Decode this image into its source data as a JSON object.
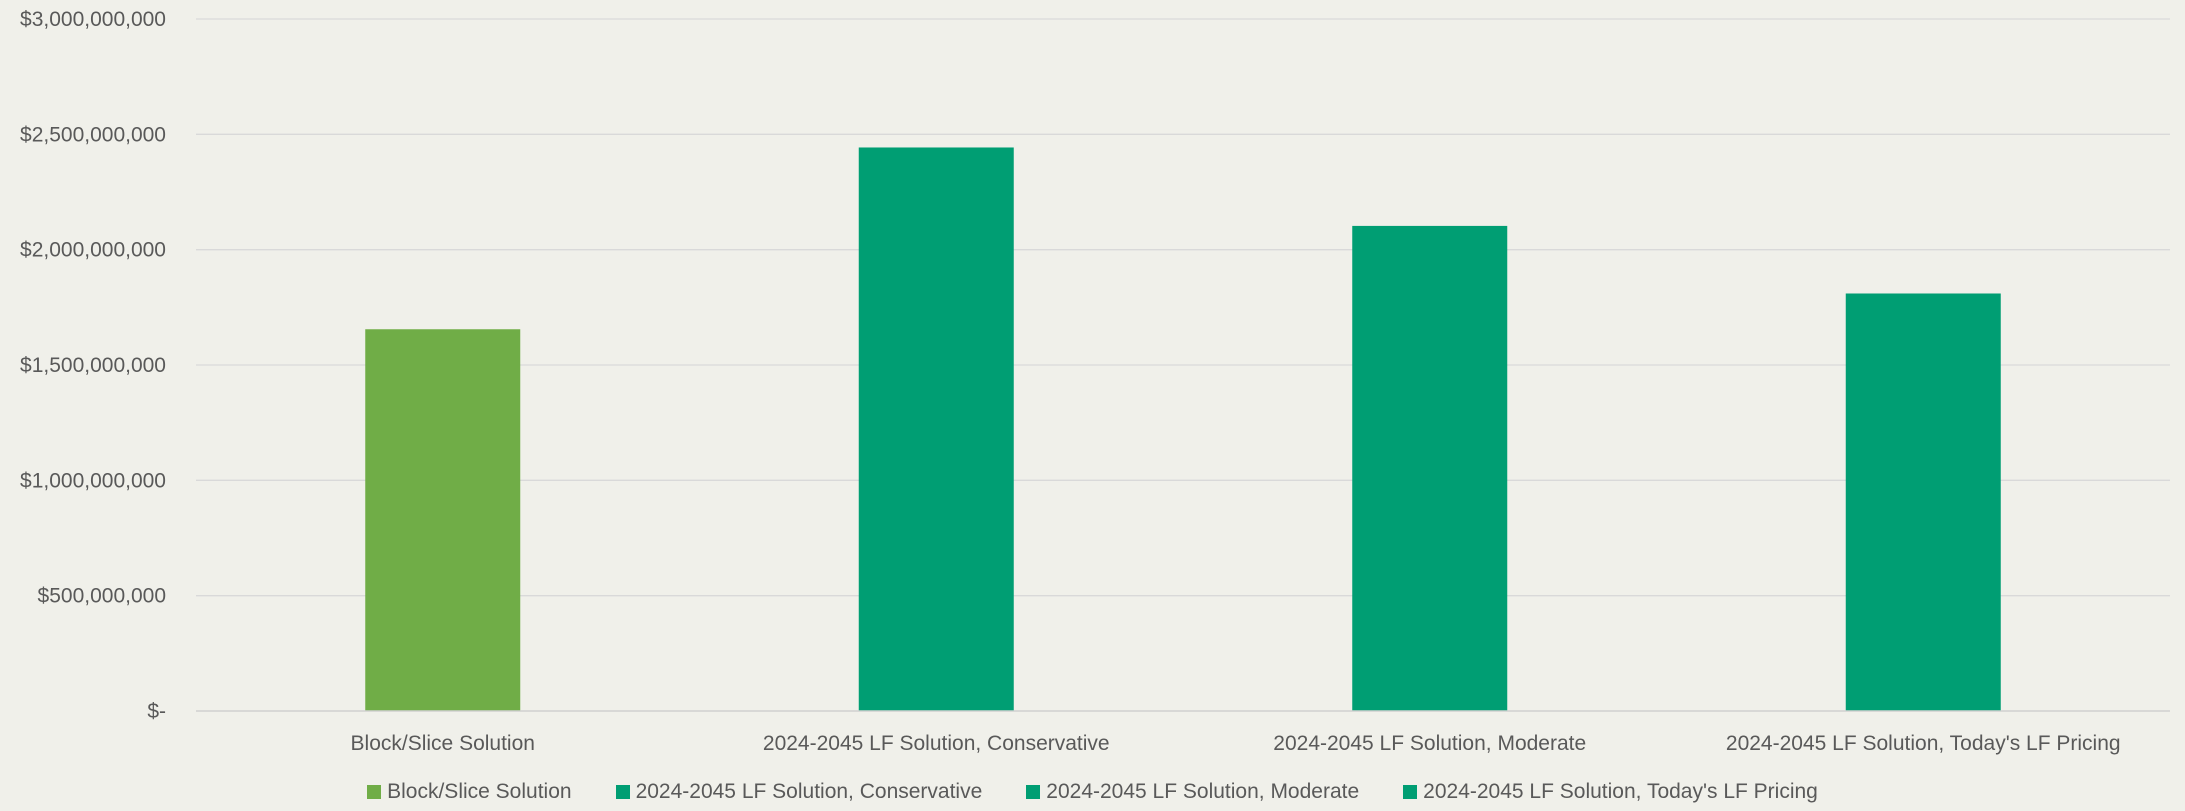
{
  "chart_data": {
    "type": "bar",
    "categories": [
      "Block/Slice Solution",
      "2024-2045 LF Solution, Conservative",
      "2024-2045 LF Solution, Moderate",
      "2024-2045 LF Solution, Today's LF Pricing"
    ],
    "series": [
      {
        "name": "Block/Slice Solution",
        "values": [
          1655000000,
          null,
          null,
          null
        ],
        "color": "#70ad47"
      },
      {
        "name": "2024-2045 LF Solution, Conservative",
        "values": [
          null,
          2443000000,
          null,
          null
        ],
        "color": "#009e73"
      },
      {
        "name": "2024-2045 LF Solution, Moderate",
        "values": [
          null,
          null,
          2103000000,
          null
        ],
        "color": "#009e73"
      },
      {
        "name": "2024-2045 LF Solution, Today's LF Pricing",
        "values": [
          null,
          null,
          null,
          1810000000
        ],
        "color": "#009e73"
      }
    ],
    "values": [
      1655000000,
      2443000000,
      2103000000,
      1810000000
    ],
    "bar_colors": [
      "#70ad47",
      "#009e73",
      "#009e73",
      "#009e73"
    ],
    "y_ticks": [
      0,
      500000000,
      1000000000,
      1500000000,
      2000000000,
      2500000000,
      3000000000
    ],
    "y_tick_labels": [
      "$-",
      "$500,000,000",
      "$1,000,000,000",
      "$1,500,000,000",
      "$2,000,000,000",
      "$2,500,000,000",
      "$3,000,000,000"
    ],
    "ylim": [
      0,
      3000000000
    ],
    "grid": true,
    "legend_position": "bottom",
    "colors": {
      "background": "#f0f0ea",
      "gridline": "#d9d9d9",
      "axis": "#d0d0d0",
      "text": "#595959"
    }
  }
}
